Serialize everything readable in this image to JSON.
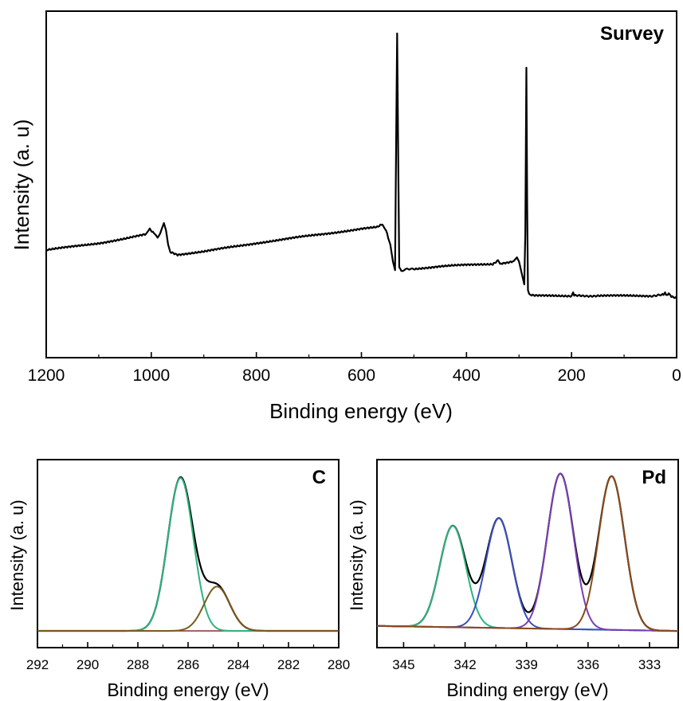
{
  "chart_data": [
    {
      "type": "line",
      "panel": "Survey",
      "title": "Survey",
      "xlabel": "Binding energy (eV)",
      "ylabel": "Intensity (a. u)",
      "xlim": [
        1200,
        0
      ],
      "x_reversed": true,
      "ylim": [
        0,
        100
      ],
      "x_ticks": [
        "1200",
        "1000",
        "800",
        "600",
        "400",
        "200",
        "0"
      ],
      "grid": false,
      "series": [
        {
          "color": "#000000",
          "x": [
            1200,
            1100,
            1050,
            1010,
            1003,
            995,
            988,
            981,
            976,
            972,
            968,
            964,
            950,
            900,
            800,
            700,
            600,
            570,
            560,
            553,
            545,
            540,
            536,
            534,
            532,
            530,
            528,
            524,
            515,
            500,
            450,
            400,
            350,
            340,
            336,
            332,
            320,
            310,
            304,
            300,
            295,
            290,
            288,
            286,
            284.5,
            283,
            281,
            278,
            270,
            250,
            200,
            197,
            195,
            150,
            100,
            50,
            25,
            22,
            20,
            17,
            15,
            10,
            0
          ],
          "values": [
            24,
            26.5,
            28,
            29.5,
            31.5,
            30,
            28.5,
            31,
            33.5,
            31,
            26,
            23.5,
            22.5,
            23.5,
            26.5,
            29,
            31.5,
            32,
            33,
            31,
            26,
            20,
            17,
            60,
            100,
            57,
            18,
            17,
            17.2,
            17.5,
            18.3,
            18.8,
            19.2,
            20.5,
            19.2,
            19.5,
            19.8,
            20.2,
            21.5,
            20,
            16,
            12,
            30,
            88,
            40,
            10,
            8.8,
            8.2,
            8,
            8,
            8,
            9.2,
            8,
            8,
            8,
            8,
            8.3,
            9.2,
            8.3,
            8.3,
            8.9,
            7.8,
            7.2
          ]
        }
      ]
    },
    {
      "type": "line",
      "panel": "C",
      "title": "C",
      "xlabel": "Binding energy (eV)",
      "ylabel": "Intensity (a. u)",
      "xlim": [
        292,
        280
      ],
      "x_reversed": true,
      "ylim": [
        0,
        100
      ],
      "x_ticks": [
        "292",
        "290",
        "288",
        "286",
        "284",
        "282",
        "280"
      ],
      "grid": false,
      "peaks": [
        {
          "center": 286.3,
          "height": 100,
          "fwhm": 1.2,
          "color": "#2db47c"
        },
        {
          "center": 284.85,
          "height": 29,
          "fwhm": 1.2,
          "color": "#7a5a1e"
        }
      ],
      "envelope_color": "#000000",
      "baseline": 0
    },
    {
      "type": "line",
      "panel": "Pd",
      "title": "Pd",
      "xlabel": "Binding energy (eV)",
      "ylabel": "Intensity (a. u)",
      "xlim": [
        346.3,
        331.6
      ],
      "x_reversed": true,
      "ylim": [
        0,
        100
      ],
      "x_ticks": [
        "345",
        "342",
        "339",
        "336",
        "333"
      ],
      "grid": false,
      "peaks": [
        {
          "center": 342.6,
          "height": 60,
          "fwhm": 1.5,
          "color": "#2db47c"
        },
        {
          "center": 340.35,
          "height": 65,
          "fwhm": 1.5,
          "color": "#3b4fc0"
        },
        {
          "center": 337.35,
          "height": 92,
          "fwhm": 1.5,
          "color": "#7a3fb8"
        },
        {
          "center": 334.85,
          "height": 91,
          "fwhm": 1.5,
          "color": "#8a4a1c"
        }
      ],
      "envelope_color": "#000000",
      "baseline_left": 2,
      "baseline_right": -1
    }
  ]
}
